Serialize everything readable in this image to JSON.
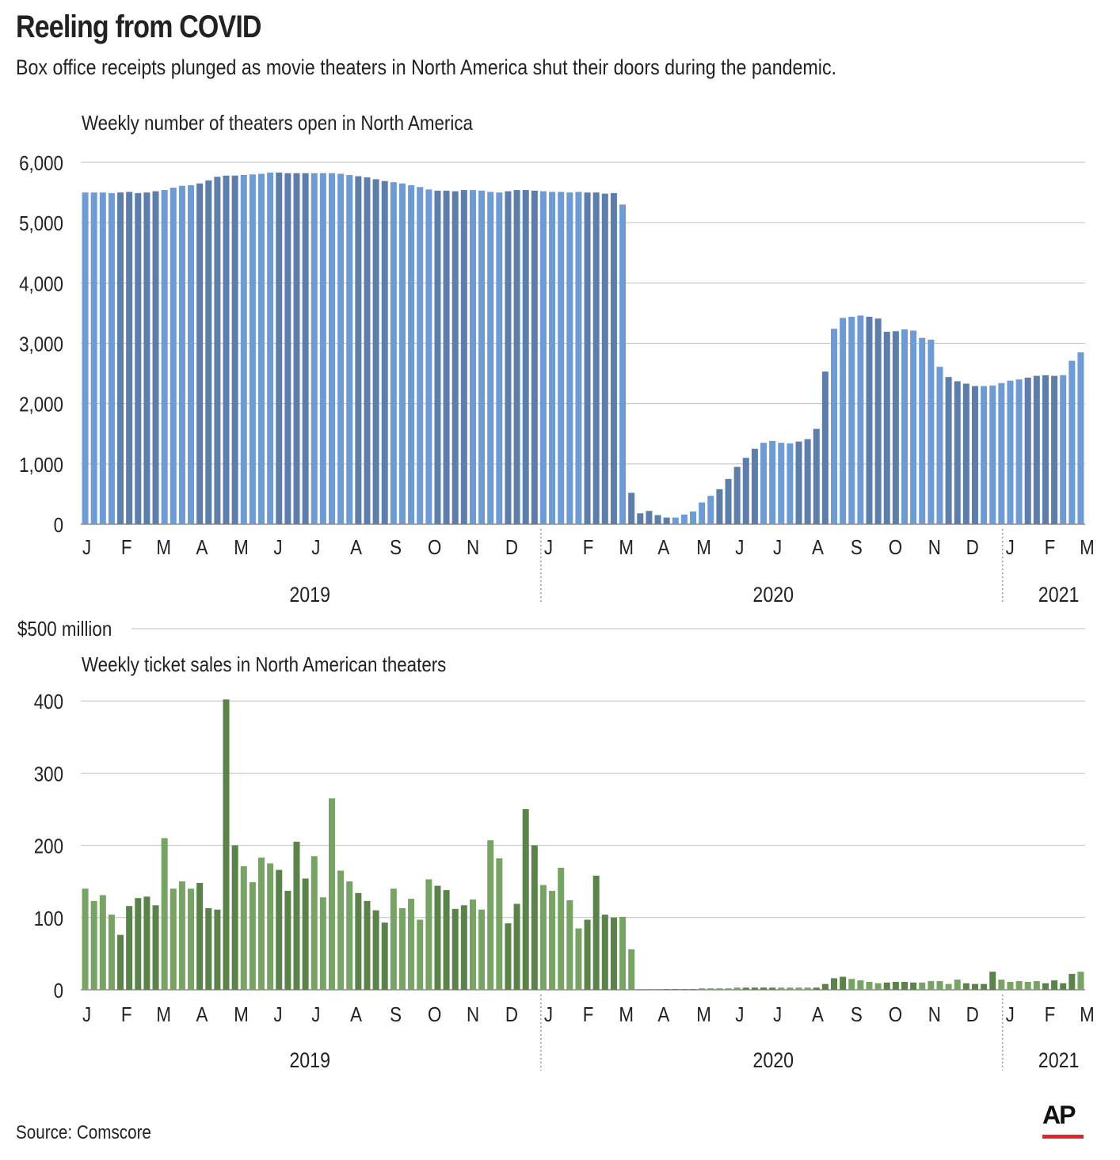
{
  "title": "Reeling from COVID",
  "subtitle": "Box office receipts plunged as movie theaters in North America shut their doors during the pandemic.",
  "source": "Source: Comscore",
  "logo": "AP",
  "colors": {
    "blue_light": "#6f9bd4",
    "blue_dark": "#5d7eaa",
    "green_light": "#77a464",
    "green_dark": "#5a8349",
    "grid": "#bfbfbf",
    "divider": "#999999",
    "text": "#222222",
    "logo_bar": "#e0242b"
  },
  "chart_data": [
    {
      "type": "bar",
      "id": "theaters",
      "title": "Weekly number of theaters open in North America",
      "ylim": [
        0,
        6000
      ],
      "yticks": [
        0,
        1000,
        2000,
        3000,
        4000,
        5000,
        6000
      ],
      "ytick_labels": [
        "0",
        "1,000",
        "2,000",
        "3,000",
        "4,000",
        "5,000",
        "6,000"
      ],
      "month_labels": [
        "J",
        "F",
        "M",
        "A",
        "M",
        "J",
        "J",
        "A",
        "S",
        "O",
        "N",
        "D",
        "J",
        "F",
        "M",
        "A",
        "M",
        "J",
        "J",
        "A",
        "S",
        "O",
        "N",
        "D",
        "J",
        "F",
        "M"
      ],
      "month_start_weeks": [
        0,
        4.4,
        8.4,
        12.9,
        17.2,
        21.7,
        26,
        30.4,
        34.9,
        39.2,
        43.6,
        48,
        52.4,
        56.8,
        60.9,
        65.3,
        69.7,
        74.1,
        78.4,
        82.8,
        87.2,
        91.5,
        96,
        100.3,
        104.8,
        109.2,
        113.2
      ],
      "years": [
        {
          "label": "2019",
          "center_week": 26
        },
        {
          "label": "2020",
          "center_week": 78.6
        },
        {
          "label": "2021",
          "center_week": 111
        }
      ],
      "year_dividers": [
        52.4,
        104.8
      ],
      "values": [
        5500,
        5500,
        5500,
        5490,
        5500,
        5510,
        5490,
        5500,
        5520,
        5540,
        5580,
        5610,
        5620,
        5650,
        5700,
        5760,
        5780,
        5780,
        5790,
        5800,
        5810,
        5830,
        5830,
        5820,
        5820,
        5820,
        5820,
        5820,
        5820,
        5810,
        5790,
        5770,
        5750,
        5720,
        5690,
        5670,
        5650,
        5620,
        5590,
        5550,
        5530,
        5530,
        5520,
        5540,
        5540,
        5530,
        5510,
        5500,
        5520,
        5540,
        5540,
        5530,
        5520,
        5510,
        5510,
        5500,
        5510,
        5500,
        5500,
        5480,
        5490,
        5300,
        520,
        180,
        220,
        150,
        110,
        110,
        160,
        210,
        360,
        470,
        580,
        750,
        950,
        1100,
        1250,
        1350,
        1380,
        1350,
        1340,
        1370,
        1410,
        1580,
        2530,
        3240,
        3420,
        3440,
        3460,
        3440,
        3410,
        3190,
        3200,
        3230,
        3210,
        3090,
        3060,
        2610,
        2440,
        2370,
        2330,
        2290,
        2290,
        2300,
        2340,
        2380,
        2400,
        2430,
        2460,
        2470,
        2460,
        2470,
        2710,
        2850
      ],
      "value_colors": [
        "light",
        "light",
        "light",
        "light",
        "dark",
        "dark",
        "dark",
        "dark",
        "dark",
        "light",
        "light",
        "light",
        "light",
        "dark",
        "dark",
        "dark",
        "dark",
        "dark",
        "light",
        "light",
        "light",
        "light",
        "dark",
        "dark",
        "dark",
        "dark",
        "light",
        "light",
        "light",
        "light",
        "light",
        "dark",
        "dark",
        "dark",
        "dark",
        "light",
        "light",
        "light",
        "light",
        "light",
        "dark",
        "dark",
        "dark",
        "dark",
        "light",
        "light",
        "light",
        "light",
        "dark",
        "dark",
        "dark",
        "dark",
        "light",
        "light",
        "light",
        "light",
        "light",
        "dark",
        "dark",
        "dark",
        "dark",
        "light",
        "dark",
        "dark",
        "dark",
        "dark",
        "dark",
        "light",
        "light",
        "light",
        "light",
        "light",
        "dark",
        "dark",
        "dark",
        "dark",
        "dark",
        "light",
        "light",
        "light",
        "light",
        "dark",
        "dark",
        "dark",
        "dark",
        "light",
        "light",
        "light",
        "light",
        "dark",
        "dark",
        "dark",
        "dark",
        "light",
        "light",
        "light",
        "light",
        "light",
        "dark",
        "dark",
        "dark",
        "dark",
        "light",
        "light",
        "light",
        "light",
        "light",
        "dark",
        "dark",
        "dark",
        "dark",
        "light",
        "light",
        "light"
      ]
    },
    {
      "type": "bar",
      "id": "sales",
      "title": "Weekly ticket sales in North American theaters",
      "unit_label": "$500 million",
      "ylim": [
        0,
        500
      ],
      "yticks": [
        0,
        100,
        200,
        300,
        400,
        500
      ],
      "ytick_labels": [
        "0",
        "100",
        "200",
        "300",
        "400",
        ""
      ],
      "month_labels": [
        "J",
        "F",
        "M",
        "A",
        "M",
        "J",
        "J",
        "A",
        "S",
        "O",
        "N",
        "D",
        "J",
        "F",
        "M",
        "A",
        "M",
        "J",
        "J",
        "A",
        "S",
        "O",
        "N",
        "D",
        "J",
        "F",
        "M"
      ],
      "month_start_weeks": [
        0,
        4.4,
        8.4,
        12.9,
        17.2,
        21.7,
        26,
        30.4,
        34.9,
        39.2,
        43.6,
        48,
        52.4,
        56.8,
        60.9,
        65.3,
        69.7,
        74.1,
        78.4,
        82.8,
        87.2,
        91.5,
        96,
        100.3,
        104.8,
        109.2,
        113.2
      ],
      "years": [
        {
          "label": "2019",
          "center_week": 26
        },
        {
          "label": "2020",
          "center_week": 78.6
        },
        {
          "label": "2021",
          "center_week": 111
        }
      ],
      "year_dividers": [
        52.4,
        104.8
      ],
      "values": [
        140,
        123,
        131,
        104,
        76,
        116,
        127,
        129,
        117,
        210,
        140,
        150,
        140,
        148,
        113,
        111,
        402,
        200,
        171,
        149,
        183,
        175,
        166,
        137,
        205,
        154,
        185,
        128,
        265,
        165,
        150,
        134,
        123,
        110,
        93,
        140,
        113,
        126,
        97,
        153,
        144,
        138,
        112,
        117,
        125,
        111,
        207,
        182,
        92,
        119,
        250,
        200,
        145,
        137,
        169,
        124,
        85,
        97,
        158,
        104,
        100,
        101,
        56,
        1,
        1,
        1,
        1,
        1,
        1,
        1,
        2,
        2,
        2,
        2,
        3,
        3,
        3,
        3,
        3,
        3,
        3,
        3,
        3,
        3,
        8,
        16,
        18,
        15,
        13,
        11,
        9,
        10,
        11,
        11,
        10,
        10,
        12,
        12,
        8,
        14,
        9,
        8,
        8,
        25,
        14,
        11,
        12,
        11,
        12,
        9,
        13,
        9,
        22,
        25
      ],
      "value_colors": [
        "light",
        "light",
        "light",
        "light",
        "dark",
        "dark",
        "dark",
        "dark",
        "dark",
        "light",
        "light",
        "light",
        "light",
        "dark",
        "dark",
        "dark",
        "dark",
        "dark",
        "light",
        "light",
        "light",
        "light",
        "dark",
        "dark",
        "dark",
        "dark",
        "light",
        "light",
        "light",
        "light",
        "light",
        "dark",
        "dark",
        "dark",
        "dark",
        "light",
        "light",
        "light",
        "light",
        "light",
        "dark",
        "dark",
        "dark",
        "dark",
        "light",
        "light",
        "light",
        "light",
        "dark",
        "dark",
        "dark",
        "dark",
        "light",
        "light",
        "light",
        "light",
        "light",
        "dark",
        "dark",
        "dark",
        "dark",
        "light",
        "light",
        "light",
        "light",
        "light",
        "dark",
        "dark",
        "dark",
        "dark",
        "light",
        "light",
        "light",
        "light",
        "light",
        "dark",
        "dark",
        "dark",
        "dark",
        "light",
        "light",
        "light",
        "light",
        "dark",
        "dark",
        "dark",
        "dark",
        "light",
        "light",
        "light",
        "light",
        "dark",
        "dark",
        "dark",
        "dark",
        "light",
        "light",
        "light",
        "light",
        "light",
        "dark",
        "dark",
        "dark",
        "dark",
        "light",
        "light",
        "light",
        "light",
        "light",
        "dark",
        "dark",
        "dark",
        "dark",
        "light",
        "light",
        "light"
      ]
    }
  ]
}
